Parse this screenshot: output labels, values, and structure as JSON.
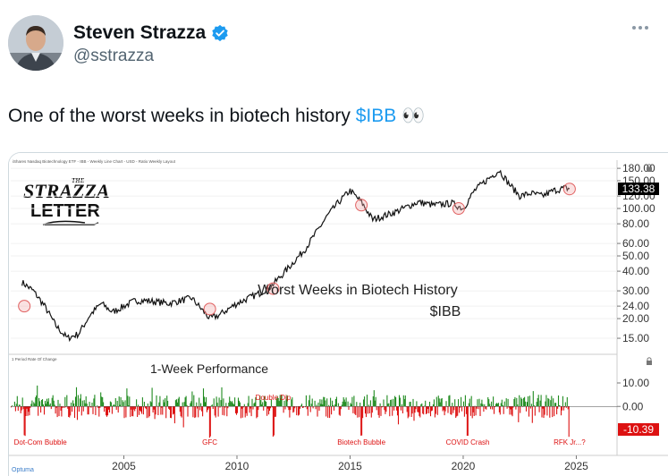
{
  "author": {
    "display_name": "Steven Strazza",
    "handle": "@sstrazza",
    "verified": true
  },
  "tweet": {
    "text_main": "One of the worst weeks in biotech history ",
    "cashtag": "$IBB",
    "emoji": "👀"
  },
  "chart_data": [
    {
      "type": "line",
      "title": "iShares Nasdaq Biotechnology ETF - IBB - Weekly Line Chart - USD - Ratio Weekly Layout",
      "annotation_title": "Worst Weeks in Biotech History",
      "annotation_ticker": "$IBB",
      "y_scale": "log",
      "ylim": [
        13,
        185
      ],
      "y_ticks": [
        "180.00",
        "150.00",
        "120.00",
        "100.00",
        "80.00",
        "60.00",
        "50.00",
        "40.00",
        "30.00",
        "24.00",
        "20.00",
        "15.00"
      ],
      "last_value_label": "133.38",
      "x": [
        2000.5,
        2001.0,
        2001.5,
        2002.0,
        2002.5,
        2003.0,
        2003.5,
        2004.0,
        2004.5,
        2005.0,
        2005.5,
        2006.0,
        2007.0,
        2008.0,
        2008.8,
        2009.2,
        2010.0,
        2011.0,
        2011.5,
        2012.0,
        2013.0,
        2014.0,
        2014.5,
        2015.0,
        2015.5,
        2016.0,
        2017.0,
        2018.0,
        2018.7,
        2019.5,
        2020.0,
        2020.5,
        2021.0,
        2021.6,
        2022.0,
        2022.5,
        2023.0,
        2023.5,
        2024.0,
        2024.5,
        2024.7
      ],
      "values": [
        34,
        30,
        24,
        18,
        15,
        16,
        21,
        25,
        22,
        24,
        26,
        26,
        25,
        27,
        20,
        21,
        25,
        29,
        32,
        38,
        55,
        90,
        110,
        130,
        110,
        85,
        95,
        110,
        105,
        108,
        100,
        130,
        150,
        175,
        145,
        120,
        125,
        120,
        130,
        135,
        133.38
      ],
      "worst_week_markers": [
        {
          "x": 2000.6,
          "y": 24
        },
        {
          "x": 2008.8,
          "y": 23
        },
        {
          "x": 2011.6,
          "y": 31
        },
        {
          "x": 2015.5,
          "y": 105
        },
        {
          "x": 2019.8,
          "y": 100
        },
        {
          "x": 2024.7,
          "y": 133
        }
      ]
    },
    {
      "type": "bar",
      "title": "1 Period Rate Of Change",
      "label": "1-Week Performance",
      "ylim": [
        -14,
        18
      ],
      "y_ticks": [
        "10.00",
        "0.00"
      ],
      "last_value_label": "-10.39",
      "events": [
        {
          "label": "Dot-Com Bubble",
          "x": 2000.6
        },
        {
          "label": "GFC",
          "x": 2008.8
        },
        {
          "label": "Double Dip",
          "x": 2011.6
        },
        {
          "label": "Biotech Bubble",
          "x": 2015.5
        },
        {
          "label": "COVID Crash",
          "x": 2020.2
        },
        {
          "label": "RFK Jr...?",
          "x": 2024.7
        }
      ],
      "x_ticks": [
        "2005",
        "2010",
        "2015",
        "2020",
        "2025"
      ],
      "x_range": [
        2000.0,
        2026.8
      ],
      "positive_color": "#1f8a1f",
      "negative_color": "#dd1111"
    }
  ],
  "logos": {
    "strazza_line1": "THE",
    "strazza_line2": "STRAZZA",
    "strazza_line3": "LETTER",
    "optuma": "Optuma"
  }
}
